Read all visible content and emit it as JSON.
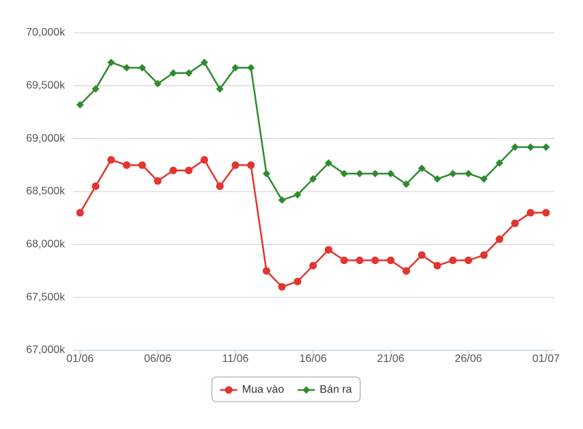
{
  "chart_data": {
    "type": "line",
    "categories": [
      "01/06",
      null,
      null,
      null,
      null,
      "06/06",
      null,
      null,
      null,
      null,
      "11/06",
      null,
      null,
      null,
      null,
      "16/06",
      null,
      null,
      null,
      null,
      "21/06",
      null,
      null,
      null,
      null,
      "26/06",
      null,
      null,
      null,
      null,
      "01/07"
    ],
    "series": [
      {
        "name": "Mua vào",
        "color": "#e3342f",
        "marker": "circle",
        "values": [
          68300,
          68550,
          68800,
          68750,
          68750,
          68600,
          68700,
          68700,
          68800,
          68550,
          68750,
          68750,
          67750,
          67600,
          67650,
          67800,
          67950,
          67850,
          67850,
          67850,
          67850,
          67750,
          67900,
          67800,
          67850,
          67850,
          67900,
          68050,
          68200,
          68300,
          68300
        ]
      },
      {
        "name": "Bán ra",
        "color": "#2e8b2e",
        "marker": "diamond",
        "values": [
          69320,
          69470,
          69720,
          69670,
          69670,
          69520,
          69620,
          69620,
          69720,
          69470,
          69670,
          69670,
          68670,
          68420,
          68470,
          68620,
          68770,
          68670,
          68670,
          68670,
          68670,
          68570,
          68720,
          68620,
          68670,
          68670,
          68620,
          68770,
          68920,
          68920,
          68920
        ]
      }
    ],
    "ylim": [
      67000,
      70000
    ],
    "yticks": [
      {
        "value": 67000,
        "label": "67,000k"
      },
      {
        "value": 67500,
        "label": "67,500k"
      },
      {
        "value": 68000,
        "label": "68,000k"
      },
      {
        "value": 68500,
        "label": "68,500k"
      },
      {
        "value": 69000,
        "label": "69,000k"
      },
      {
        "value": 69500,
        "label": "69,500k"
      },
      {
        "value": 70000,
        "label": "70,000k"
      }
    ],
    "grid": true,
    "legend": "bottom"
  }
}
